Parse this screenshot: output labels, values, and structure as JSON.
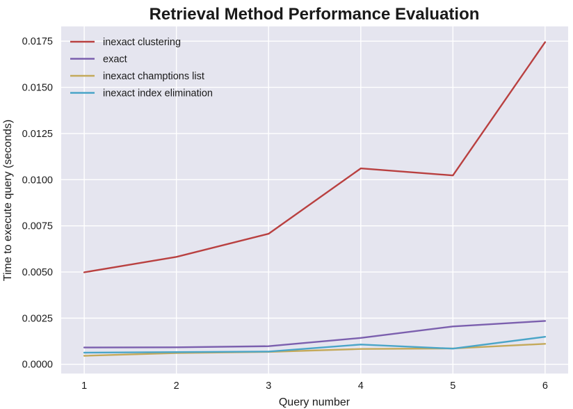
{
  "chart_data": {
    "type": "line",
    "title": "Retrieval Method Performance Evaluation",
    "xlabel": "Query number",
    "ylabel": "Time to execute query (seconds)",
    "x": [
      1,
      2,
      3,
      4,
      5,
      6
    ],
    "x_ticks": [
      "1",
      "2",
      "3",
      "4",
      "5",
      "6"
    ],
    "xlim": [
      0.75,
      6.25
    ],
    "y_ticks": [
      "0.0000",
      "0.0025",
      "0.0050",
      "0.0075",
      "0.0100",
      "0.0125",
      "0.0150",
      "0.0175"
    ],
    "ylim": [
      -0.0005,
      0.0183
    ],
    "grid": true,
    "background_color": "#e5e5ef",
    "legend_placement": "upper-left",
    "series": [
      {
        "name": "inexact clustering",
        "color": "#b94040",
        "values": [
          0.00498,
          0.00582,
          0.00707,
          0.01061,
          0.01023,
          0.01745
        ]
      },
      {
        "name": "exact",
        "color": "#7b5fae",
        "values": [
          0.00091,
          0.00092,
          0.00098,
          0.00143,
          0.00205,
          0.00235
        ]
      },
      {
        "name": "inexact champtions list",
        "color": "#c4a95a",
        "values": [
          0.00046,
          0.00061,
          0.00067,
          0.00083,
          0.00086,
          0.00111
        ]
      },
      {
        "name": "inexact index elimination",
        "color": "#4aa5c8",
        "values": [
          0.00063,
          0.00066,
          0.00069,
          0.00107,
          0.00085,
          0.00149
        ]
      }
    ]
  }
}
